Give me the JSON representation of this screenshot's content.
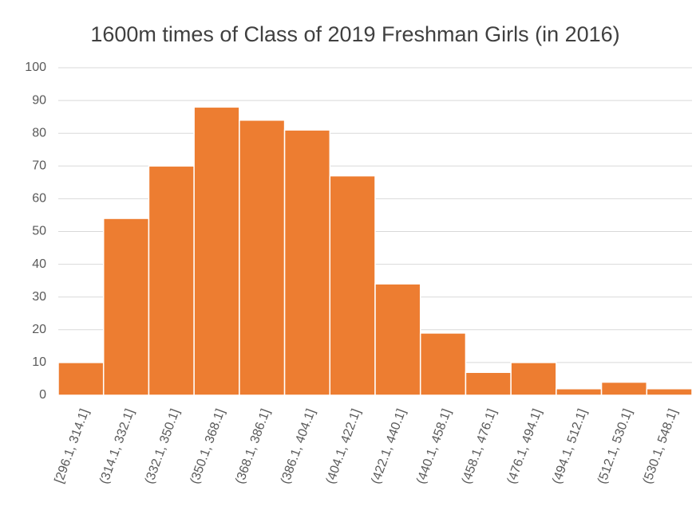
{
  "chart_data": {
    "type": "bar",
    "title": "1600m times of Class of 2019 Freshman Girls (in 2016)",
    "categories": [
      "[296.1, 314.1]",
      "(314.1, 332.1]",
      "(332.1, 350.1]",
      "(350.1, 368.1]",
      "(368.1, 386.1]",
      "(386.1, 404.1]",
      "(404.1, 422.1]",
      "(422.1, 440.1]",
      "(440.1, 458.1]",
      "(458.1, 476.1]",
      "(476.1, 494.1]",
      "(494.1, 512.1]",
      "(512.1, 530.1]",
      "(530.1, 548.1]"
    ],
    "values": [
      10,
      54,
      70,
      88,
      84,
      81,
      67,
      34,
      19,
      7,
      10,
      2,
      4,
      2
    ],
    "color": "#ed7d31",
    "ylim": [
      0,
      100
    ],
    "yticks": [
      0,
      10,
      20,
      30,
      40,
      50,
      60,
      70,
      80,
      90,
      100
    ],
    "grid": true
  }
}
